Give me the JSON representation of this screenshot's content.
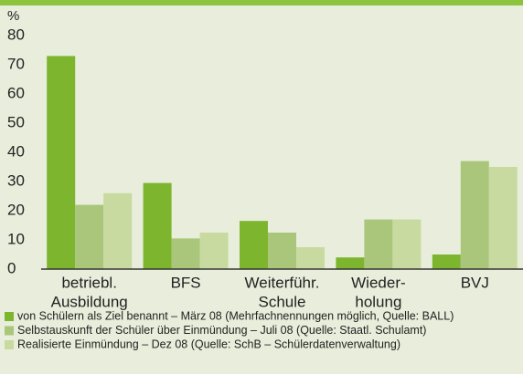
{
  "chart_data": {
    "type": "bar",
    "y_label": "%",
    "categories": [
      [
        "betriebl.",
        "Ausbildung"
      ],
      [
        "BFS"
      ],
      [
        "Weiterführ.",
        "Schule"
      ],
      [
        "Wieder-",
        "holung"
      ],
      [
        "BVJ"
      ]
    ],
    "series": [
      {
        "name": "von Schülern als Ziel benannt – März 08 (Mehrfachnennungen möglich, Quelle: BALL)",
        "color": "#7db52f",
        "values": [
          73,
          29.5,
          16.5,
          4,
          5
        ]
      },
      {
        "name": "Selbstauskunft der Schüler über Einmündung – Juli 08 (Quelle: Staatl. Schulamt)",
        "color": "#a9c67a",
        "values": [
          22,
          10.5,
          12.5,
          17,
          37
        ]
      },
      {
        "name": "Realisierte Einmündung – Dez 08 (Quelle: SchB – Schülerdatenverwaltung)",
        "color": "#c8daa0",
        "values": [
          26,
          12.5,
          7.5,
          17,
          35
        ]
      }
    ],
    "ylim": [
      0,
      80
    ],
    "yticks": [
      0,
      10,
      20,
      30,
      40,
      50,
      60,
      70,
      80
    ],
    "grid": false
  }
}
